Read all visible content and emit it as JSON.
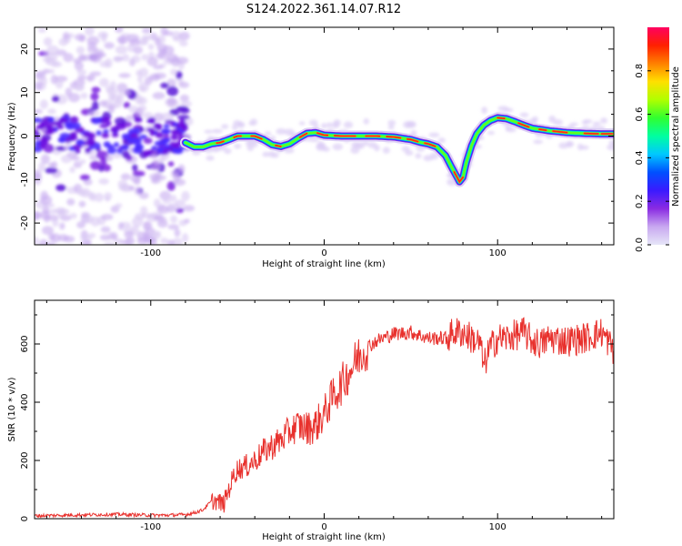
{
  "figure": {
    "title": "S124.2022.361.14.07.R12"
  },
  "chart_data": [
    {
      "type": "heatmap",
      "xlabel": "Height of straight line (km)",
      "ylabel": "Frequency (Hz)",
      "xlim": [
        -167,
        167
      ],
      "ylim": [
        -25,
        25
      ],
      "xticks": [
        -100,
        0,
        100
      ],
      "yticks": [
        -20,
        -10,
        0,
        10,
        20
      ],
      "ridge": {
        "x": [
          -80,
          -75,
          -70,
          -65,
          -60,
          -55,
          -50,
          -45,
          -40,
          -35,
          -30,
          -25,
          -20,
          -15,
          -10,
          -5,
          0,
          10,
          20,
          30,
          40,
          50,
          55,
          60,
          65,
          70,
          73,
          76,
          78,
          80,
          82,
          85,
          88,
          92,
          96,
          100,
          105,
          110,
          115,
          120,
          130,
          140,
          150,
          160,
          167
        ],
        "y": [
          -1.5,
          -2.5,
          -2.5,
          -1.8,
          -1.5,
          -0.8,
          0.0,
          0.0,
          0.0,
          -0.8,
          -2.0,
          -2.4,
          -1.8,
          -0.5,
          0.6,
          0.8,
          0.2,
          0.0,
          0.0,
          0.0,
          -0.2,
          -0.8,
          -1.4,
          -1.8,
          -2.5,
          -4.5,
          -6.8,
          -9.0,
          -10.5,
          -9.5,
          -6.0,
          -2.2,
          0.5,
          2.5,
          3.6,
          4.2,
          4.0,
          3.3,
          2.5,
          1.8,
          1.2,
          0.8,
          0.6,
          0.5,
          0.5
        ]
      },
      "colorbar": {
        "label": "Normalized spectral amplitude",
        "ticks": [
          0.0,
          0.2,
          0.4,
          0.6,
          0.8
        ],
        "range": [
          0,
          1
        ],
        "colors": [
          "#e6e6f8",
          "#c8a8f0",
          "#8a2be2",
          "#3a1aff",
          "#0050ff",
          "#00c8ff",
          "#00ffa0",
          "#30ff30",
          "#b0ff00",
          "#ffe000",
          "#ff8000",
          "#ff2000",
          "#ff0060"
        ]
      }
    },
    {
      "type": "line",
      "xlabel": "Height of straight line (km)",
      "ylabel": "SNR (10 * v/v)",
      "xlim": [
        -167,
        167
      ],
      "ylim": [
        0,
        750
      ],
      "xticks": [
        -100,
        0,
        100
      ],
      "yticks": [
        0,
        200,
        400,
        600
      ],
      "series": [
        {
          "color": "#e8312d",
          "x": [
            -167,
            -150,
            -120,
            -100,
            -90,
            -80,
            -75,
            -70,
            -65,
            -62,
            -58,
            -55,
            -52,
            -50,
            -45,
            -40,
            -35,
            -30,
            -25,
            -20,
            -15,
            -10,
            -5,
            0,
            5,
            10,
            15,
            20,
            25,
            30,
            40,
            50,
            60,
            70,
            75,
            80,
            85,
            90,
            92,
            95,
            100,
            105,
            110,
            115,
            120,
            125,
            130,
            140,
            150,
            160,
            167
          ],
          "y": [
            10,
            12,
            15,
            12,
            12,
            14,
            20,
            30,
            60,
            60,
            50,
            100,
            150,
            170,
            180,
            200,
            230,
            250,
            270,
            300,
            320,
            310,
            320,
            360,
            420,
            460,
            510,
            560,
            590,
            610,
            635,
            640,
            620,
            620,
            640,
            640,
            620,
            600,
            520,
            580,
            620,
            620,
            630,
            640,
            610,
            600,
            620,
            610,
            620,
            640,
            580
          ]
        }
      ]
    }
  ]
}
